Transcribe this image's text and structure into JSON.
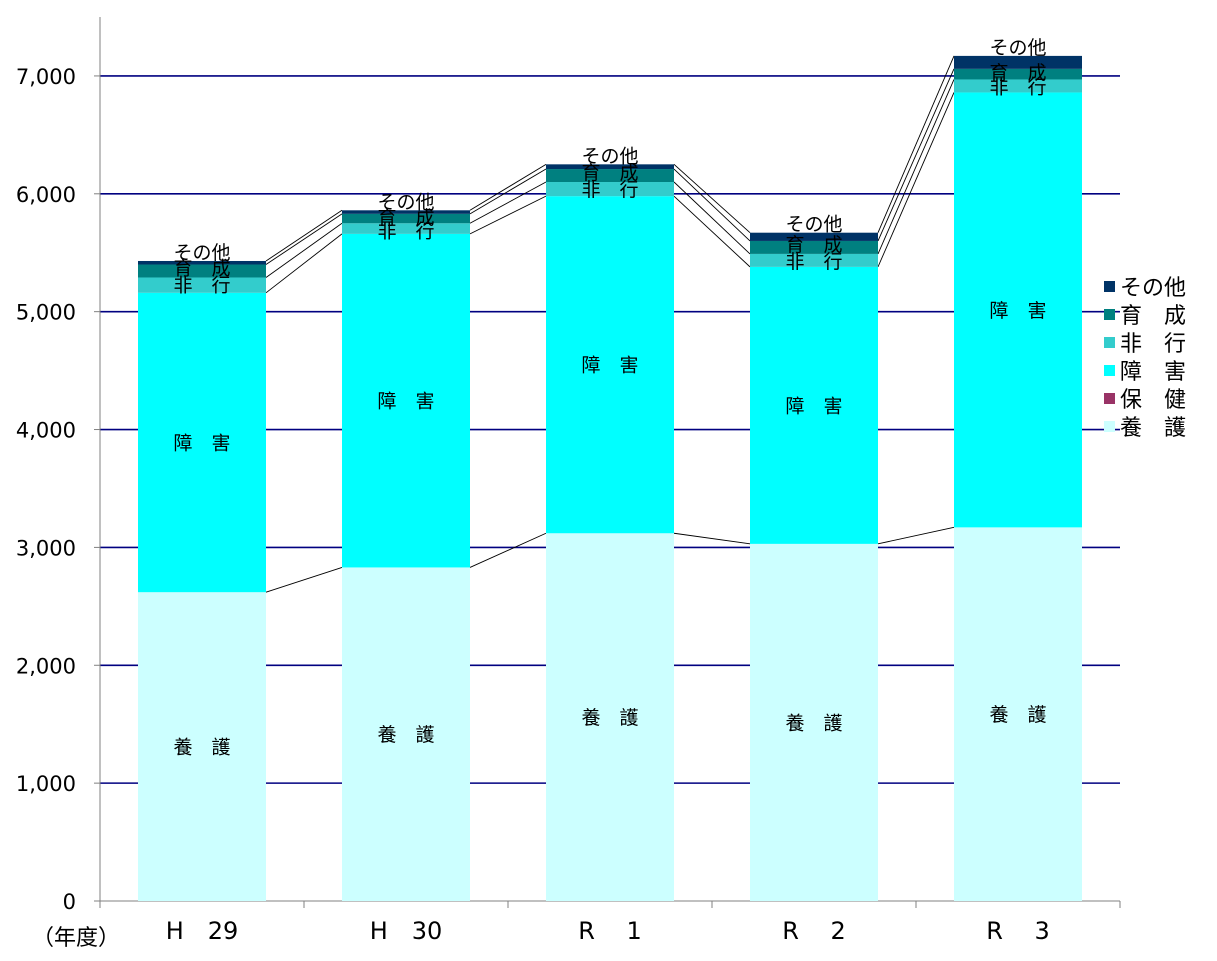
{
  "chart_data": {
    "type": "bar",
    "stacked": true,
    "categories": [
      "H　29",
      "H　30",
      "R　 1",
      "R　 2",
      "R　 3"
    ],
    "category_unit_label": "（年度）",
    "ylim": [
      0,
      7500
    ],
    "yticks": [
      0,
      1000,
      2000,
      3000,
      4000,
      5000,
      6000,
      7000
    ],
    "ytick_labels": [
      "0",
      "1,000",
      "2,000",
      "3,000",
      "4,000",
      "5,000",
      "6,000",
      "7,000"
    ],
    "grid": true,
    "legend_position": "right",
    "series": [
      {
        "name": "養　護",
        "segment_label": "養　護",
        "color": "#ccffff",
        "values": [
          2620,
          2830,
          3120,
          3030,
          3170
        ]
      },
      {
        "name": "保　健",
        "segment_label": "",
        "color": "#993366",
        "values": [
          0,
          0,
          0,
          0,
          0
        ]
      },
      {
        "name": "障　害",
        "segment_label": "障　害",
        "color": "#00ffff",
        "values": [
          2540,
          2830,
          2860,
          2350,
          3690
        ]
      },
      {
        "name": "非　行",
        "segment_label": "非　行",
        "color": "#33cccc",
        "values": [
          130,
          90,
          120,
          110,
          110
        ]
      },
      {
        "name": "育　成",
        "segment_label": "育　成",
        "color": "#008080",
        "values": [
          110,
          80,
          110,
          110,
          90
        ]
      },
      {
        "name": "その他",
        "segment_label": "その他",
        "color": "#003366",
        "values": [
          30,
          30,
          40,
          70,
          110
        ]
      }
    ]
  }
}
